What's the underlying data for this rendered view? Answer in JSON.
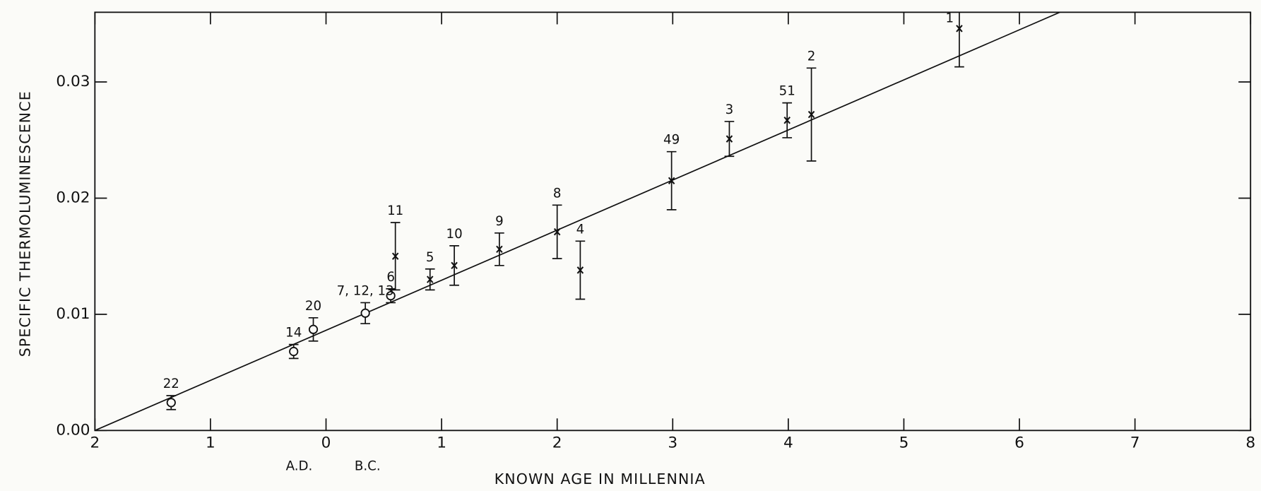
{
  "chart_data": {
    "type": "scatter",
    "ylabel": "SPECIFIC THERMOLUMINESCENCE",
    "xlabel": "KNOWN AGE IN MILLENNIA",
    "era_labels": [
      "A.D.",
      "B.C."
    ],
    "xlim": [
      -2,
      8
    ],
    "xticks": [
      {
        "value": -2,
        "label": "2"
      },
      {
        "value": -1,
        "label": "1"
      },
      0,
      1,
      2,
      3,
      4,
      5,
      6,
      7,
      8
    ],
    "ylim": [
      0,
      0.036
    ],
    "yticks": [
      {
        "value": 0,
        "label": "0.00"
      },
      0.01,
      0.02,
      0.03
    ],
    "color": "#111111",
    "grid": false,
    "points": [
      {
        "label": "22",
        "x": -1.34,
        "y": 0.0024,
        "error": 0.0006,
        "marker": "circle"
      },
      {
        "label": "14",
        "x": -0.28,
        "y": 0.0068,
        "error": 0.0006,
        "marker": "circle"
      },
      {
        "label": "20",
        "x": -0.11,
        "y": 0.0087,
        "error": 0.001,
        "marker": "circle"
      },
      {
        "label": "7, 12, 13",
        "x": 0.34,
        "y": 0.0101,
        "error": 0.0009,
        "marker": "circle"
      },
      {
        "label": "6",
        "x": 0.56,
        "y": 0.0116,
        "error": 0.0006,
        "marker": "circle"
      },
      {
        "label": "11",
        "x": 0.6,
        "y": 0.015,
        "error": 0.0029,
        "marker": "cross"
      },
      {
        "label": "5",
        "x": 0.9,
        "y": 0.013,
        "error": 0.0009,
        "marker": "cross"
      },
      {
        "label": "10",
        "x": 1.11,
        "y": 0.0142,
        "error": 0.0017,
        "marker": "cross"
      },
      {
        "label": "9",
        "x": 1.5,
        "y": 0.0156,
        "error": 0.0014,
        "marker": "cross"
      },
      {
        "label": "8",
        "x": 2.0,
        "y": 0.0171,
        "error": 0.0023,
        "marker": "cross"
      },
      {
        "label": "4",
        "x": 2.2,
        "y": 0.0138,
        "error": 0.0025,
        "marker": "cross"
      },
      {
        "label": "49",
        "x": 2.99,
        "y": 0.0215,
        "error": 0.0025,
        "marker": "cross"
      },
      {
        "label": "3",
        "x": 3.49,
        "y": 0.0251,
        "error": 0.0015,
        "marker": "cross"
      },
      {
        "label": "51",
        "x": 3.99,
        "y": 0.0267,
        "error": 0.0015,
        "marker": "cross"
      },
      {
        "label": "2",
        "x": 4.2,
        "y": 0.0272,
        "error": 0.004,
        "marker": "cross"
      },
      {
        "label": "1",
        "x": 5.48,
        "y": 0.0346,
        "error": 0.0033,
        "marker": "cross"
      }
    ],
    "fit": {
      "x": [
        -2,
        6.35
      ],
      "y": [
        0,
        0.036
      ]
    }
  }
}
